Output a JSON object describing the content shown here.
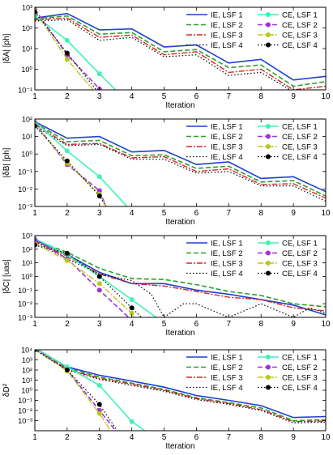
{
  "colors": {
    "IE_LSF1": "#1f3fd6",
    "IE_LSF2": "#2ca02c",
    "IE_LSF3": "#d62728",
    "IE_LSF4": "#000000",
    "CE_LSF1": "#40f2b6",
    "CE_LSF2": "#a430d8",
    "CE_LSF3": "#b7c81f",
    "CE_LSF4": "#000000"
  },
  "legend_labels": [
    "IE, LSF 1",
    "IE, LSF 2",
    "IE, LSF 3",
    "IE, LSF 4",
    "CE, LSF 1",
    "CE, LSF 2",
    "CE, LSF 3",
    "CE, LSF 4"
  ],
  "chart_data": [
    {
      "type": "line",
      "ylabel": "|δA| [ph]",
      "xlabel": "Iteration",
      "xlim": [
        1,
        10
      ],
      "ylog": true,
      "ylim": [
        0.1,
        1000
      ],
      "yticks": [
        {
          "v": 0.1,
          "label": "10⁻¹"
        },
        {
          "v": 1,
          "label": "10⁰"
        },
        {
          "v": 10,
          "label": "10¹"
        },
        {
          "v": 100,
          "label": "10²"
        },
        {
          "v": 1000,
          "label": "10³"
        }
      ],
      "xticks": [
        1,
        2,
        3,
        4,
        5,
        6,
        7,
        8,
        9,
        10
      ],
      "legend_position": "top-right",
      "series": [
        {
          "name": "IE, LSF 1",
          "x": [
            1,
            2,
            3,
            4,
            5,
            6,
            7,
            8,
            9,
            10
          ],
          "y": [
            300,
            500,
            80,
            90,
            12,
            15,
            2,
            3,
            0.3,
            0.45
          ]
        },
        {
          "name": "IE, LSF 2",
          "x": [
            1,
            2,
            3,
            4,
            5,
            6,
            7,
            8,
            9,
            10
          ],
          "y": [
            280,
            380,
            50,
            60,
            7,
            9,
            1.2,
            1.6,
            0.15,
            0.25
          ]
        },
        {
          "name": "IE, LSF 3",
          "x": [
            1,
            2,
            3,
            4,
            5,
            6,
            7,
            8,
            9,
            10
          ],
          "y": [
            250,
            300,
            35,
            45,
            5,
            7,
            0.7,
            1.0,
            0.1,
            0.15
          ]
        },
        {
          "name": "IE, LSF 4",
          "x": [
            1,
            2,
            3,
            4,
            5,
            6,
            7,
            8,
            9,
            10
          ],
          "y": [
            220,
            250,
            25,
            35,
            4,
            5,
            0.5,
            0.7,
            0.08,
            0.1
          ]
        },
        {
          "name": "CE, LSF 1",
          "x": [
            1,
            2,
            3,
            3.5
          ],
          "y": [
            400,
            25,
            0.6,
            0.1
          ]
        },
        {
          "name": "CE, LSF 2",
          "x": [
            1,
            2,
            3,
            3.3
          ],
          "y": [
            800,
            5,
            0.11,
            0.05
          ]
        },
        {
          "name": "CE, LSF 3",
          "x": [
            1,
            2,
            2.8
          ],
          "y": [
            700,
            3,
            0.1
          ]
        },
        {
          "name": "CE, LSF 4",
          "x": [
            1,
            2,
            2.9
          ],
          "y": [
            600,
            6,
            0.1
          ]
        }
      ]
    },
    {
      "type": "line",
      "ylabel": "|δB| [ph]",
      "xlabel": "Iteration",
      "xlim": [
        1,
        10
      ],
      "ylog": true,
      "ylim": [
        0.001,
        100
      ],
      "yticks": [
        {
          "v": 0.001,
          "label": "10⁻³"
        },
        {
          "v": 0.01,
          "label": "10⁻²"
        },
        {
          "v": 0.1,
          "label": "10⁻¹"
        },
        {
          "v": 1,
          "label": "10⁰"
        },
        {
          "v": 10,
          "label": "10¹"
        },
        {
          "v": 100,
          "label": "10²"
        }
      ],
      "xticks": [
        1,
        2,
        3,
        4,
        5,
        6,
        7,
        8,
        9,
        10
      ],
      "legend_position": "top-right",
      "series": [
        {
          "name": "IE, LSF 1",
          "x": [
            1,
            2,
            3,
            4,
            5,
            6,
            7,
            8,
            9,
            10
          ],
          "y": [
            70,
            8,
            10,
            1.3,
            1.6,
            0.25,
            0.35,
            0.04,
            0.05,
            0.007
          ]
        },
        {
          "name": "IE, LSF 2",
          "x": [
            1,
            2,
            3,
            4,
            5,
            6,
            7,
            8,
            9,
            10
          ],
          "y": [
            60,
            5,
            6,
            0.8,
            0.9,
            0.15,
            0.2,
            0.025,
            0.03,
            0.004
          ]
        },
        {
          "name": "IE, LSF 3",
          "x": [
            1,
            2,
            3,
            4,
            5,
            6,
            7,
            8,
            9,
            10
          ],
          "y": [
            50,
            3.5,
            4,
            0.6,
            0.7,
            0.1,
            0.14,
            0.018,
            0.02,
            0.003
          ]
        },
        {
          "name": "IE, LSF 4",
          "x": [
            1,
            2,
            3,
            4,
            5,
            6,
            7,
            8,
            9,
            10
          ],
          "y": [
            40,
            3,
            3.5,
            0.5,
            0.5,
            0.08,
            0.1,
            0.015,
            0.015,
            0.002
          ]
        },
        {
          "name": "CE, LSF 1",
          "x": [
            1,
            2,
            3,
            3.85
          ],
          "y": [
            70,
            1.5,
            0.05,
            0.001
          ]
        },
        {
          "name": "CE, LSF 2",
          "x": [
            1,
            2,
            3,
            3.2
          ],
          "y": [
            60,
            0.25,
            0.008,
            0.001
          ]
        },
        {
          "name": "CE, LSF 3",
          "x": [
            1,
            2,
            3,
            3.2
          ],
          "y": [
            50,
            0.3,
            0.005,
            0.001
          ]
        },
        {
          "name": "CE, LSF 4",
          "x": [
            1,
            2,
            3,
            3.2
          ],
          "y": [
            40,
            0.4,
            0.004,
            0.001
          ]
        }
      ]
    },
    {
      "type": "line",
      "ylabel": "|δC| [uas]",
      "xlabel": "Iteration",
      "xlim": [
        1,
        10
      ],
      "ylog": true,
      "ylim": [
        0.001,
        1000
      ],
      "yticks": [
        {
          "v": 0.001,
          "label": "10⁻³"
        },
        {
          "v": 0.01,
          "label": "10⁻²"
        },
        {
          "v": 0.1,
          "label": "10⁻¹"
        },
        {
          "v": 1,
          "label": "10⁰"
        },
        {
          "v": 10,
          "label": "10¹"
        },
        {
          "v": 100,
          "label": "10²"
        },
        {
          "v": 1000,
          "label": "10³"
        }
      ],
      "xticks": [
        1,
        2,
        3,
        4,
        5,
        6,
        7,
        8,
        9,
        10
      ],
      "legend_position": "top-right",
      "series": [
        {
          "name": "IE, LSF 1",
          "x": [
            1,
            2,
            3,
            4,
            5,
            6,
            7,
            8,
            9,
            10
          ],
          "y": [
            500,
            40,
            2,
            0.3,
            0.3,
            0.1,
            0.05,
            0.02,
            0.008,
            0.0015
          ]
        },
        {
          "name": "IE, LSF 2",
          "x": [
            1,
            2,
            3,
            4,
            5,
            6,
            7,
            8,
            9,
            10
          ],
          "y": [
            450,
            60,
            4,
            0.7,
            0.6,
            0.25,
            0.08,
            0.04,
            0.01,
            0.006
          ]
        },
        {
          "name": "IE, LSF 3",
          "x": [
            1,
            2,
            3,
            4,
            5,
            6,
            7,
            8,
            9,
            10
          ],
          "y": [
            400,
            30,
            1.5,
            0.3,
            0.2,
            0.08,
            0.03,
            0.02,
            0.005,
            0.003
          ]
        },
        {
          "name": "IE, LSF 4",
          "x": [
            1,
            2,
            3,
            4,
            4.6,
            5,
            5.6,
            6,
            7,
            8,
            9,
            9.5,
            10
          ],
          "y": [
            350,
            20,
            1.5,
            0.5,
            0.05,
            0.001,
            0.01,
            0.01,
            0.001,
            0.01,
            0.001,
            0.005,
            0.002
          ]
        },
        {
          "name": "CE, LSF 1",
          "x": [
            1,
            2,
            3,
            4,
            4.75
          ],
          "y": [
            600,
            40,
            1,
            0.02,
            0.001
          ]
        },
        {
          "name": "CE, LSF 2",
          "x": [
            1,
            2,
            3,
            3.9
          ],
          "y": [
            500,
            20,
            0.1,
            0.001
          ]
        },
        {
          "name": "CE, LSF 3",
          "x": [
            1,
            2,
            3,
            4,
            4.05
          ],
          "y": [
            250,
            15,
            0.3,
            0.002,
            0.001
          ]
        },
        {
          "name": "CE, LSF 4",
          "x": [
            1,
            2,
            3,
            4,
            4.3
          ],
          "y": [
            200,
            50,
            1,
            0.005,
            0.001
          ]
        }
      ]
    },
    {
      "type": "line",
      "ylabel": "δD²",
      "xlabel": "Iteration",
      "xlim": [
        1,
        10
      ],
      "ylog": true,
      "ylim": [
        0.0001,
        10000
      ],
      "yticks": [
        {
          "v": 0.001,
          "label": "10⁻³"
        },
        {
          "v": 0.01,
          "label": "10⁻²"
        },
        {
          "v": 0.1,
          "label": "10⁻¹"
        },
        {
          "v": 1,
          "label": "10⁰"
        },
        {
          "v": 10,
          "label": "10¹"
        },
        {
          "v": 100,
          "label": "10²"
        },
        {
          "v": 1000,
          "label": "10³"
        },
        {
          "v": 10000,
          "label": "10⁴"
        }
      ],
      "xticks": [
        1,
        2,
        3,
        4,
        5,
        6,
        7,
        8,
        9,
        10
      ],
      "legend_position": "top-right",
      "series": [
        {
          "name": "IE, LSF 1",
          "x": [
            1,
            2,
            3,
            4,
            5,
            6,
            7,
            8,
            9,
            10
          ],
          "y": [
            15000,
            200,
            30,
            8,
            2,
            0.3,
            0.1,
            0.03,
            0.002,
            0.0025
          ]
        },
        {
          "name": "IE, LSF 2",
          "x": [
            1,
            2,
            3,
            4,
            5,
            6,
            7,
            8,
            9,
            10
          ],
          "y": [
            13000,
            150,
            20,
            5,
            1.2,
            0.18,
            0.06,
            0.018,
            0.001,
            0.0012
          ]
        },
        {
          "name": "IE, LSF 3",
          "x": [
            1,
            2,
            3,
            4,
            5,
            6,
            7,
            8,
            9,
            10
          ],
          "y": [
            11000,
            120,
            15,
            4,
            1,
            0.15,
            0.05,
            0.012,
            0.0008,
            0.0009
          ]
        },
        {
          "name": "IE, LSF 4",
          "x": [
            1,
            2,
            3,
            4,
            5,
            6,
            7,
            8,
            9,
            10
          ],
          "y": [
            10000,
            100,
            12,
            3,
            0.8,
            0.12,
            0.04,
            0.01,
            0.0006,
            0.0007
          ]
        },
        {
          "name": "CE, LSF 1",
          "x": [
            1,
            2,
            3,
            4,
            4.4
          ],
          "y": [
            15000,
            200,
            3,
            0.0008,
            0.0001
          ]
        },
        {
          "name": "CE, LSF 2",
          "x": [
            1,
            2,
            3,
            3.5
          ],
          "y": [
            13000,
            100,
            0.01,
            0.0001
          ]
        },
        {
          "name": "CE, LSF 3",
          "x": [
            1,
            2,
            3,
            3.35
          ],
          "y": [
            11000,
            80,
            0.005,
            0.0001
          ]
        },
        {
          "name": "CE, LSF 4",
          "x": [
            1,
            2,
            3,
            3.55
          ],
          "y": [
            10000,
            100,
            0.04,
            0.0001
          ]
        }
      ]
    }
  ]
}
